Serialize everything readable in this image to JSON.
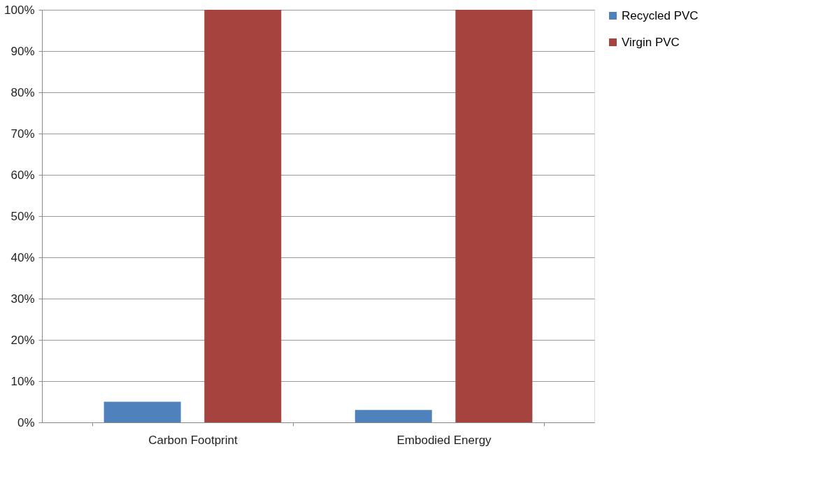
{
  "chart_data": {
    "type": "bar",
    "categories": [
      "Carbon Footprint",
      "Embodied Energy"
    ],
    "series": [
      {
        "name": "Recycled PVC",
        "color": "#4f81bd",
        "values": [
          5,
          3
        ]
      },
      {
        "name": "Virgin PVC",
        "color": "#a5443f",
        "values": [
          100,
          100
        ]
      }
    ],
    "ylim": [
      0,
      100
    ],
    "yticks": [
      {
        "value": 0,
        "label": "0%"
      },
      {
        "value": 10,
        "label": "10%"
      },
      {
        "value": 20,
        "label": "20%"
      },
      {
        "value": 30,
        "label": "30%"
      },
      {
        "value": 40,
        "label": "40%"
      },
      {
        "value": 50,
        "label": "50%"
      },
      {
        "value": 60,
        "label": "60%"
      },
      {
        "value": 70,
        "label": "70%"
      },
      {
        "value": 80,
        "label": "80%"
      },
      {
        "value": 90,
        "label": "90%"
      },
      {
        "value": 100,
        "label": "100%"
      }
    ],
    "grid": "y",
    "legend": "right"
  }
}
